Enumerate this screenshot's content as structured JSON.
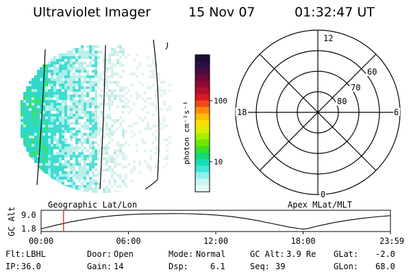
{
  "header": {
    "instrument": "Ultraviolet Imager",
    "date": "15 Nov 07",
    "time": "01:32:47 UT"
  },
  "left_panel": {
    "label": "Geographic Lat/Lon"
  },
  "colorbar": {
    "unit": "photon cm⁻²s⁻¹",
    "ticks": [
      "100",
      "10"
    ],
    "colors": [
      "#1a0f33",
      "#2a1046",
      "#4a0b3e",
      "#6b0a3a",
      "#8c0b35",
      "#b30f2f",
      "#d81a23",
      "#f0491a",
      "#ff8a0a",
      "#ffbb00",
      "#f7e000",
      "#d6f000",
      "#a8ee00",
      "#6fe600",
      "#38df22",
      "#12d970",
      "#15ddb4",
      "#40e6dd",
      "#8ff0ee",
      "#c8f6f3",
      "#e6f9f7"
    ]
  },
  "polar": {
    "label": "Apex MLat/MLT",
    "mlt_labels": {
      "top": "12",
      "left": "18",
      "right": "6",
      "bottom": "0"
    },
    "lat_labels": [
      "60",
      "70",
      "80"
    ]
  },
  "altitude_plot": {
    "ylabel": "GC Alt",
    "yticks": [
      "9.0",
      "1.8"
    ],
    "xticks": [
      "00:00",
      "06:00",
      "12:00",
      "18:00",
      "23:59"
    ],
    "curve": [
      {
        "hour": 0.0,
        "alt_re": 1.8
      },
      {
        "hour": 1.0,
        "alt_re": 3.6
      },
      {
        "hour": 2.0,
        "alt_re": 5.2
      },
      {
        "hour": 3.0,
        "alt_re": 6.5
      },
      {
        "hour": 4.0,
        "alt_re": 7.6
      },
      {
        "hour": 5.0,
        "alt_re": 8.4
      },
      {
        "hour": 6.0,
        "alt_re": 8.9
      },
      {
        "hour": 7.0,
        "alt_re": 9.2
      },
      {
        "hour": 8.0,
        "alt_re": 9.3
      },
      {
        "hour": 9.0,
        "alt_re": 9.4
      },
      {
        "hour": 10.0,
        "alt_re": 9.35
      },
      {
        "hour": 11.0,
        "alt_re": 9.1
      },
      {
        "hour": 12.0,
        "alt_re": 8.7
      },
      {
        "hour": 13.0,
        "alt_re": 8.0
      },
      {
        "hour": 14.0,
        "alt_re": 7.0
      },
      {
        "hour": 15.0,
        "alt_re": 5.7
      },
      {
        "hour": 16.0,
        "alt_re": 4.2
      },
      {
        "hour": 17.0,
        "alt_re": 2.7
      },
      {
        "hour": 17.8,
        "alt_re": 1.8
      },
      {
        "hour": 18.0,
        "alt_re": 1.6
      },
      {
        "hour": 18.3,
        "alt_re": 1.9
      },
      {
        "hour": 19.0,
        "alt_re": 3.2
      },
      {
        "hour": 20.0,
        "alt_re": 4.8
      },
      {
        "hour": 21.0,
        "alt_re": 6.0
      },
      {
        "hour": 22.0,
        "alt_re": 7.0
      },
      {
        "hour": 23.0,
        "alt_re": 7.8
      },
      {
        "hour": 23.98,
        "alt_re": 8.4
      }
    ],
    "marker_hour": 1.54
  },
  "status": {
    "row1": [
      {
        "label": "Flt:",
        "value": "LBHL"
      },
      {
        "label": "Door:",
        "value": "Open"
      },
      {
        "label": "Mode:",
        "value": "Normal"
      },
      {
        "label": "GC Alt:",
        "value": "3.9 Re"
      },
      {
        "label": "GLat:",
        "value": "-2.0"
      }
    ],
    "row2": [
      {
        "label": "IP:",
        "value": "36.0"
      },
      {
        "label": "Gain:",
        "value": "14"
      },
      {
        "label": "Dsp:",
        "value": "6.1"
      },
      {
        "label": "Seq:",
        "value": "39"
      },
      {
        "label": "GLon:",
        "value": "68.0"
      }
    ]
  }
}
